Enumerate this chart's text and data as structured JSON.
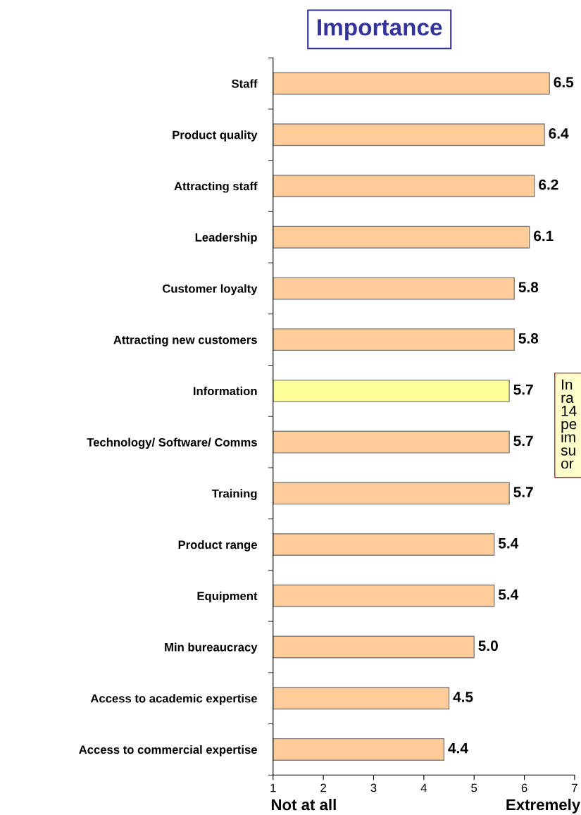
{
  "chart_data": {
    "type": "bar",
    "orientation": "horizontal",
    "title": "Importance",
    "categories": [
      "Staff",
      "Product quality",
      "Attracting staff",
      "Leadership",
      "Customer loyalty",
      "Attracting new customers",
      "Information",
      "Technology/ Software/ Comms",
      "Training",
      "Product range",
      "Equipment",
      "Min bureaucracy",
      "Access to academic expertise",
      "Access to commercial expertise"
    ],
    "values": [
      6.5,
      6.4,
      6.2,
      6.1,
      5.8,
      5.8,
      5.7,
      5.7,
      5.7,
      5.4,
      5.4,
      5.0,
      4.5,
      4.4
    ],
    "colors": [
      "#ffcc99",
      "#ffcc99",
      "#ffcc99",
      "#ffcc99",
      "#ffcc99",
      "#ffcc99",
      "#ffff99",
      "#ffcc99",
      "#ffcc99",
      "#ffcc99",
      "#ffcc99",
      "#ffcc99",
      "#ffcc99",
      "#ffcc99"
    ],
    "xlim": [
      1,
      7
    ],
    "xticks": [
      1,
      2,
      3,
      4,
      5,
      6,
      7
    ],
    "value_labels": [
      "6.5",
      "6.4",
      "6.2",
      "6.1",
      "5.8",
      "5.8",
      "5.7",
      "5.7",
      "5.7",
      "5.4",
      "5.4",
      "5.0",
      "4.5",
      "4.4"
    ],
    "grid": false,
    "legend": false,
    "annotations": [
      "Not at all",
      "Extremely",
      "In\nra\n14\npe\nim\nsu\nor"
    ]
  }
}
